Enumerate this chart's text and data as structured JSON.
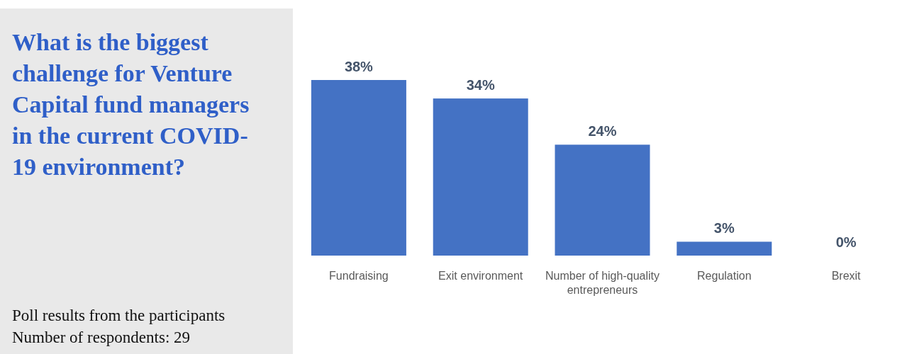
{
  "chart_data": {
    "type": "bar",
    "title": "What is the biggest challenge for Venture Capital fund managers in the current COVID-19 environment?",
    "categories": [
      "Fundraising",
      "Exit environment",
      "Number of high-quality entrepreneurs",
      "Regulation",
      "Brexit"
    ],
    "values": [
      38,
      34,
      24,
      3,
      0
    ],
    "color": "#4472c4",
    "value_labels": [
      "38%",
      "34%",
      "24%",
      "3%",
      "0%"
    ],
    "annotations": [
      "Poll results from the participants",
      "Number of respondents: 29"
    ]
  }
}
